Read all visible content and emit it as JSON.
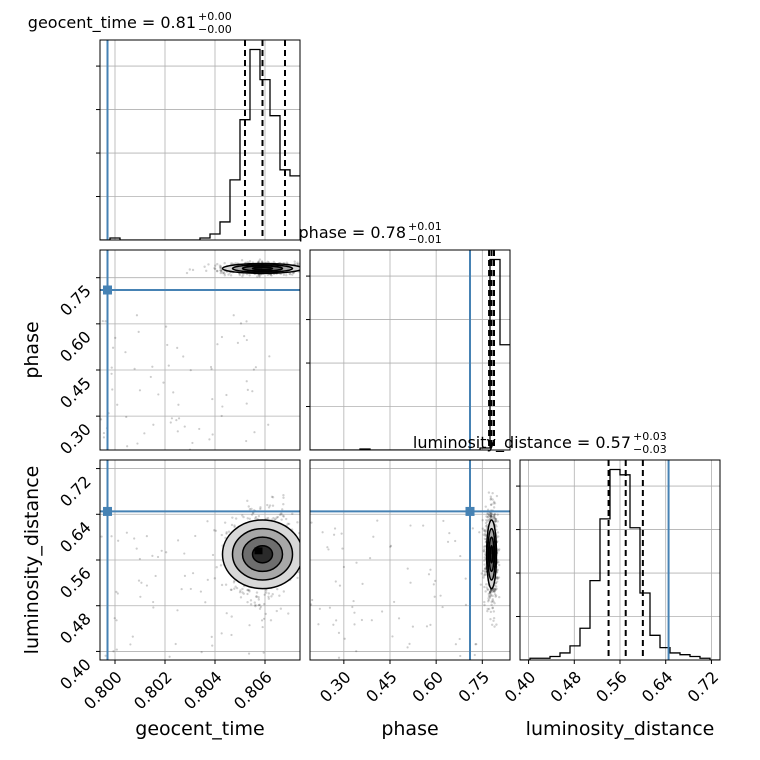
{
  "chart_data": {
    "type": "corner",
    "parameters": [
      "geocent_time",
      "phase",
      "luminosity_distance"
    ],
    "titles": [
      {
        "param": "geocent_time",
        "text": "geocent_time = 0.81",
        "upper": "+0.00",
        "lower": "−0.00"
      },
      {
        "param": "phase",
        "text": "phase = 0.78",
        "upper": "+0.01",
        "lower": "−0.01"
      },
      {
        "param": "luminosity_distance",
        "text": "luminosity_distance = 0.57",
        "upper": "+0.03",
        "lower": "−0.03"
      }
    ],
    "axis_labels": {
      "geocent_time": "geocent_time",
      "phase": "phase",
      "luminosity_distance": "luminosity_distance"
    },
    "ranges": {
      "geocent_time": [
        0.7994,
        0.8074
      ],
      "phase": [
        0.19,
        0.84
      ],
      "luminosity_distance": [
        0.385,
        0.735
      ]
    },
    "ticks": {
      "geocent_time": [
        "0.800",
        "0.802",
        "0.804",
        "0.806"
      ],
      "phase": [
        "0.30",
        "0.45",
        "0.60",
        "0.75"
      ],
      "luminosity_distance": [
        "0.40",
        "0.48",
        "0.56",
        "0.64",
        "0.72"
      ]
    },
    "truths": {
      "geocent_time": 0.7997,
      "phase": 0.71,
      "luminosity_distance": 0.645
    },
    "quantiles": {
      "geocent_time": [
        0.8052,
        0.8059,
        0.8068
      ],
      "phase": [
        0.772,
        0.78,
        0.788
      ],
      "luminosity_distance": [
        0.54,
        0.57,
        0.6
      ]
    },
    "histograms": {
      "geocent_time": {
        "edges": [
          0.7994,
          0.7998,
          0.8002,
          0.8006,
          0.801,
          0.8014,
          0.8018,
          0.8022,
          0.8026,
          0.803,
          0.8034,
          0.8038,
          0.8042,
          0.8046,
          0.805,
          0.8054,
          0.8058,
          0.8062,
          0.8066,
          0.807,
          0.8074
        ],
        "counts": [
          0,
          1,
          0,
          0,
          0,
          0,
          0,
          0,
          0,
          0,
          1,
          3,
          9,
          30,
          60,
          95,
          80,
          62,
          35,
          32
        ]
      },
      "phase": {
        "edges": [
          0.19,
          0.2225,
          0.255,
          0.2875,
          0.32,
          0.3525,
          0.385,
          0.4175,
          0.45,
          0.4825,
          0.515,
          0.5475,
          0.58,
          0.6125,
          0.645,
          0.6775,
          0.71,
          0.7425,
          0.775,
          0.8075,
          0.84
        ],
        "counts": [
          0,
          0,
          0,
          0,
          0,
          1,
          0,
          0,
          0,
          0,
          0,
          0,
          0,
          0,
          0,
          0,
          0,
          2,
          190,
          105
        ]
      },
      "luminosity_distance": {
        "edges": [
          0.385,
          0.4025,
          0.42,
          0.4375,
          0.455,
          0.4725,
          0.49,
          0.5075,
          0.525,
          0.5425,
          0.56,
          0.5775,
          0.595,
          0.6125,
          0.63,
          0.6475,
          0.665,
          0.6825,
          0.7,
          0.7175,
          0.735
        ],
        "counts": [
          0,
          1,
          1,
          2,
          4,
          8,
          18,
          45,
          80,
          108,
          105,
          75,
          38,
          14,
          7,
          4,
          3,
          2,
          1,
          0
        ]
      }
    },
    "grid": true,
    "colors": {
      "truth": "#4682b4",
      "hist": "#000000",
      "scatter": "#000000",
      "grid": "#b0b0b0"
    }
  }
}
